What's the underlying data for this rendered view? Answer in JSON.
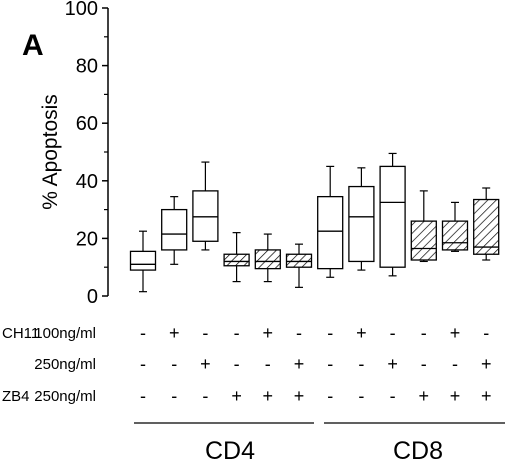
{
  "chart_data": {
    "type": "boxplot",
    "panel_label": "A",
    "ylabel": "% Apoptosis",
    "ylim": [
      0,
      100
    ],
    "yticks": [
      "0",
      "20",
      "40",
      "60",
      "80",
      "100"
    ],
    "treatment_rows": [
      {
        "agent": "CH11",
        "conc": "100ng/ml",
        "signs": [
          "-",
          "+",
          "-",
          "-",
          "+",
          "-",
          "-",
          "+",
          "-",
          "-",
          "+",
          "-"
        ]
      },
      {
        "agent": "",
        "conc": "250ng/ml",
        "signs": [
          "-",
          "-",
          "+",
          "-",
          "-",
          "+",
          "-",
          "-",
          "+",
          "-",
          "-",
          "+"
        ]
      },
      {
        "agent": "ZB4",
        "conc": "250ng/ml",
        "signs": [
          "-",
          "-",
          "-",
          "+",
          "+",
          "+",
          "-",
          "-",
          "-",
          "+",
          "+",
          "+"
        ]
      }
    ],
    "groups": [
      {
        "label": "CD4",
        "boxes": [
          0,
          1,
          2,
          3,
          4,
          5
        ]
      },
      {
        "label": "CD8",
        "boxes": [
          6,
          7,
          8,
          9,
          10,
          11
        ]
      }
    ],
    "boxes": [
      {
        "whisker_low": 1.5,
        "q1": 9,
        "median": 11,
        "q3": 15.5,
        "whisker_high": 22.5,
        "hatched": false
      },
      {
        "whisker_low": 11,
        "q1": 16,
        "median": 21.5,
        "q3": 30,
        "whisker_high": 34.5,
        "hatched": false
      },
      {
        "whisker_low": 16,
        "q1": 19,
        "median": 27.5,
        "q3": 36.5,
        "whisker_high": 46.5,
        "hatched": false
      },
      {
        "whisker_low": 5,
        "q1": 10.5,
        "median": 12,
        "q3": 14.5,
        "whisker_high": 22,
        "hatched": true
      },
      {
        "whisker_low": 5,
        "q1": 9.5,
        "median": 12,
        "q3": 16,
        "whisker_high": 21.5,
        "hatched": true
      },
      {
        "whisker_low": 3,
        "q1": 10,
        "median": 12,
        "q3": 14.5,
        "whisker_high": 18,
        "hatched": true
      },
      {
        "whisker_low": 6.5,
        "q1": 9.5,
        "median": 22.5,
        "q3": 34.5,
        "whisker_high": 45,
        "hatched": false
      },
      {
        "whisker_low": 9,
        "q1": 12,
        "median": 27.5,
        "q3": 38,
        "whisker_high": 44.5,
        "hatched": false
      },
      {
        "whisker_low": 7,
        "q1": 10,
        "median": 32.5,
        "q3": 45,
        "whisker_high": 49.5,
        "hatched": false
      },
      {
        "whisker_low": 12,
        "q1": 12.5,
        "median": 16.5,
        "q3": 26,
        "whisker_high": 36.5,
        "hatched": true
      },
      {
        "whisker_low": 15.5,
        "q1": 16,
        "median": 18.5,
        "q3": 26,
        "whisker_high": 32.5,
        "hatched": true
      },
      {
        "whisker_low": 12.5,
        "q1": 14.5,
        "median": 17,
        "q3": 33.5,
        "whisker_high": 37.5,
        "hatched": true
      }
    ]
  }
}
